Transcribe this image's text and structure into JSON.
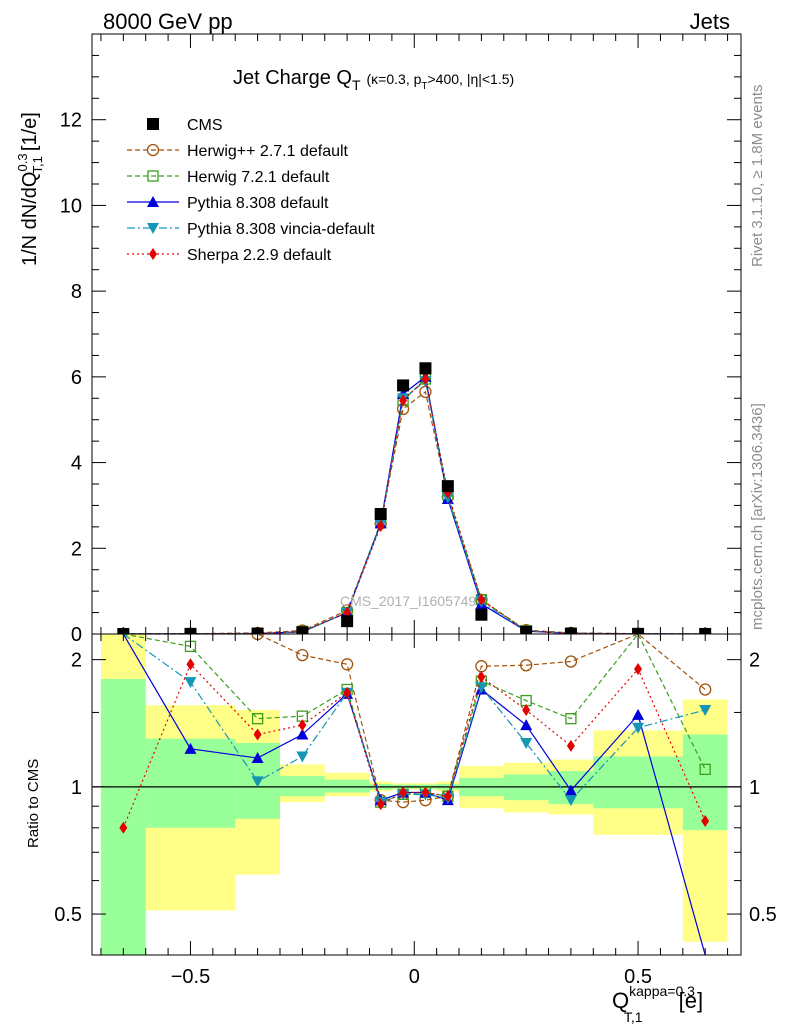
{
  "header": {
    "left": "8000 GeV pp",
    "right": "Jets"
  },
  "side_text": {
    "rivet": "Rivet 3.1.10, ≥ 1.8M events",
    "mcplots": "mcplots.cern.ch [arXiv:1306.3436]"
  },
  "plot_title": {
    "main": "Jet Charge Q",
    "main_sub": "T",
    "kin_a": "(κ=0.3, p",
    "kin_sub": "T",
    "kin_b": ">400, |η|<1.5)"
  },
  "watermark": "CMS_2017_I1605749",
  "ylabel_main": "1/N dN/dQ",
  "ylabel_main_sup": "0.3",
  "ylabel_main_sub": "T,1",
  "ylabel_main_unit": "[1/e]",
  "ylabel_ratio": "Ratio to CMS",
  "xlabel": "Q",
  "xlabel_sup": "kappa=0.3",
  "xlabel_sub": "T,1",
  "xlabel_unit": "[e]",
  "chart_data": {
    "type": "line",
    "x": [
      -0.65,
      -0.5,
      -0.35,
      -0.25,
      -0.15,
      -0.075,
      -0.025,
      0.025,
      0.075,
      0.15,
      0.25,
      0.35,
      0.5,
      0.65
    ],
    "x_edges": [
      -0.7,
      -0.6,
      -0.4,
      -0.3,
      -0.2,
      -0.1,
      -0.05,
      0.0,
      0.05,
      0.1,
      0.2,
      0.3,
      0.4,
      0.6,
      0.7
    ],
    "xlim": [
      -0.72,
      0.73
    ],
    "ylim_main": [
      0,
      14
    ],
    "ylim_ratio": [
      0.4,
      2.3
    ],
    "ratio_scale": "log",
    "grid": false,
    "legend_position": "top-left",
    "yticks_main": [
      0,
      2,
      4,
      6,
      8,
      10,
      12
    ],
    "yticks_ratio": [
      0.5,
      1,
      2
    ],
    "xticks": [
      -0.5,
      0,
      0.5
    ],
    "cms": [
      0.001,
      0.003,
      0.01,
      0.04,
      0.3,
      2.8,
      5.8,
      6.2,
      3.45,
      0.45,
      0.05,
      0.01,
      0.003,
      0.001
    ],
    "band_inner": [
      [
        0.4,
        1.8
      ],
      [
        0.8,
        1.3
      ],
      [
        0.84,
        1.27
      ],
      [
        0.95,
        1.06
      ],
      [
        0.97,
        1.04
      ],
      [
        0.985,
        1.015
      ],
      [
        0.99,
        1.012
      ],
      [
        0.99,
        1.012
      ],
      [
        0.985,
        1.015
      ],
      [
        0.95,
        1.05
      ],
      [
        0.93,
        1.07
      ],
      [
        0.91,
        1.09
      ],
      [
        0.89,
        1.18
      ],
      [
        0.79,
        1.33
      ]
    ],
    "band_outer": [
      [
        0.4,
        2.3
      ],
      [
        0.51,
        1.56
      ],
      [
        0.62,
        1.52
      ],
      [
        0.92,
        1.13
      ],
      [
        0.95,
        1.08
      ],
      [
        0.975,
        1.03
      ],
      [
        0.985,
        1.02
      ],
      [
        0.985,
        1.02
      ],
      [
        0.975,
        1.03
      ],
      [
        0.89,
        1.12
      ],
      [
        0.87,
        1.14
      ],
      [
        0.86,
        1.16
      ],
      [
        0.77,
        1.36
      ],
      [
        0.43,
        1.61
      ]
    ],
    "series": [
      {
        "name": "CMS",
        "color": "#000000",
        "marker": "square-filled",
        "values": [
          0.001,
          0.003,
          0.01,
          0.04,
          0.3,
          2.8,
          5.8,
          6.2,
          3.45,
          0.45,
          0.05,
          0.01,
          0.003,
          0.001
        ],
        "ratio": [
          1,
          1,
          1,
          1,
          1,
          1,
          1,
          1,
          1,
          1,
          1,
          1,
          1,
          1
        ]
      },
      {
        "name": "Herwig++ 2.7.1 default",
        "color": "#a0520a",
        "marker": "circle-open",
        "dash": "5,3",
        "values": [
          0.002,
          0.007,
          0.025,
          0.08,
          0.55,
          2.58,
          5.25,
          5.65,
          3.2,
          0.8,
          0.09,
          0.025,
          0.008,
          0.002
        ],
        "ratio": [
          2.8,
          2.8,
          2.3,
          2.05,
          1.95,
          0.93,
          0.92,
          0.93,
          0.95,
          1.93,
          1.94,
          1.98,
          2.9,
          1.7
        ]
      },
      {
        "name": "Herwig 7.2.1 default",
        "color": "#3d9e1e",
        "marker": "square-open",
        "dash": "5,3",
        "values": [
          0.003,
          0.006,
          0.015,
          0.06,
          0.5,
          2.6,
          5.45,
          5.95,
          3.25,
          0.8,
          0.08,
          0.02,
          0.007,
          0.001
        ],
        "ratio": [
          2.8,
          2.15,
          1.45,
          1.47,
          1.7,
          0.92,
          0.96,
          0.97,
          0.95,
          1.78,
          1.6,
          1.45,
          2.6,
          1.1
        ]
      },
      {
        "name": "Pythia 8.308 default",
        "color": "#0000dd",
        "marker": "triangle-up-filled",
        "dash": "",
        "values": [
          0.002,
          0.004,
          0.012,
          0.05,
          0.5,
          2.58,
          5.6,
          6.0,
          3.15,
          0.7,
          0.07,
          0.015,
          0.004,
          0.0003
        ],
        "ratio": [
          2.8,
          1.23,
          1.17,
          1.33,
          1.66,
          0.93,
          0.97,
          0.97,
          0.93,
          1.7,
          1.4,
          0.98,
          1.48,
          0.3
        ]
      },
      {
        "name": "Pythia 8.308 vincia-default",
        "color": "#1496b4",
        "marker": "triangle-down-filled",
        "dash": "8,3,2,3",
        "values": [
          0.002,
          0.005,
          0.01,
          0.045,
          0.5,
          2.55,
          5.5,
          5.9,
          3.18,
          0.75,
          0.065,
          0.012,
          0.004,
          0.0015
        ],
        "ratio": [
          2.5,
          1.77,
          1.03,
          1.18,
          1.67,
          0.92,
          0.96,
          0.96,
          0.94,
          1.72,
          1.27,
          0.93,
          1.38,
          1.52
        ]
      },
      {
        "name": "Sherpa 2.2.9 default",
        "color": "#e50000",
        "marker": "diamond-filled",
        "dash": "2,3",
        "values": [
          0.001,
          0.006,
          0.013,
          0.055,
          0.5,
          2.52,
          5.45,
          5.95,
          3.3,
          0.8,
          0.07,
          0.013,
          0.006,
          0.001
        ],
        "ratio": [
          0.8,
          1.95,
          1.33,
          1.4,
          1.67,
          0.91,
          0.97,
          0.97,
          0.95,
          1.82,
          1.52,
          1.25,
          1.9,
          0.83
        ]
      }
    ]
  }
}
